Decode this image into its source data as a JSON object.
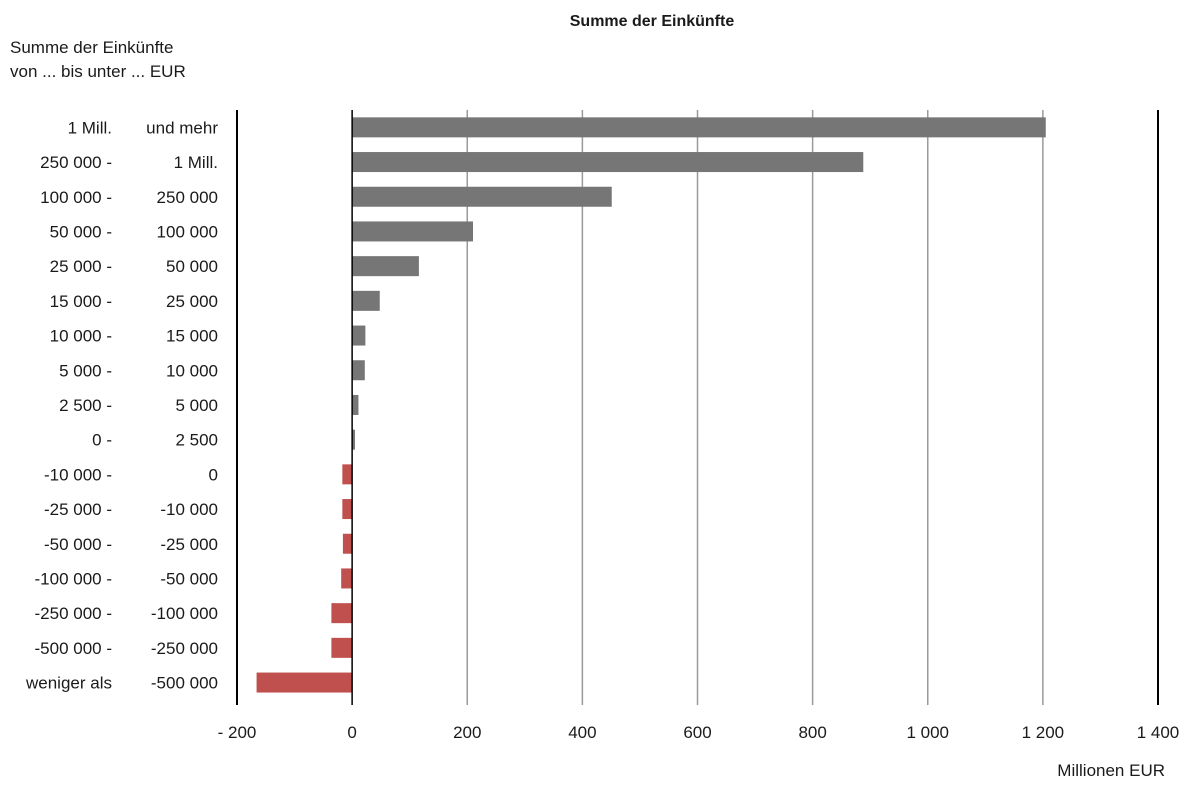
{
  "chart_data": {
    "type": "bar",
    "orientation": "horizontal",
    "title": "Summe der Einkünfte",
    "y_axis_title": [
      "Summe der Einkünfte",
      "von ... bis unter ... EUR"
    ],
    "xlabel": "Millionen EUR",
    "xlim": [
      -200,
      1400
    ],
    "x_ticks": [
      -200,
      0,
      200,
      400,
      600,
      800,
      1000,
      1200,
      1400
    ],
    "x_tick_labels": [
      "- 200",
      "0",
      "200",
      "400",
      "600",
      "800",
      "1 000",
      "1 200",
      "1 400"
    ],
    "grid": true,
    "colors": {
      "positive": "#767676",
      "negative": "#c0504d",
      "grid": "#9a9a9a",
      "axis": "#000000"
    },
    "categories": [
      {
        "from": "1 Mill.",
        "to": "und mehr"
      },
      {
        "from": "250 000   -",
        "to": "1 Mill."
      },
      {
        "from": "100 000   -",
        "to": "250 000"
      },
      {
        "from": "50 000   -",
        "to": "100 000"
      },
      {
        "from": "25 000   -",
        "to": "50 000"
      },
      {
        "from": "15 000   -",
        "to": "25 000"
      },
      {
        "from": "10 000   -",
        "to": "15 000"
      },
      {
        "from": "5 000   -",
        "to": "10 000"
      },
      {
        "from": "2 500   -",
        "to": "5 000"
      },
      {
        "from": "0   -",
        "to": "2 500"
      },
      {
        "from": "-10 000   -",
        "to": "0"
      },
      {
        "from": "-25 000   -",
        "to": "-10 000"
      },
      {
        "from": "-50 000   -",
        "to": "-25 000"
      },
      {
        "from": "-100 000   -",
        "to": "-50 000"
      },
      {
        "from": "-250 000   -",
        "to": "-100 000"
      },
      {
        "from": "-500 000   -",
        "to": "-250 000"
      },
      {
        "from": "weniger als",
        "to": "-500 000"
      }
    ],
    "values": [
      1205,
      888,
      451,
      210,
      116,
      48,
      23,
      22,
      11,
      5,
      -17,
      -17,
      -16,
      -19,
      -36,
      -36,
      -166
    ]
  }
}
